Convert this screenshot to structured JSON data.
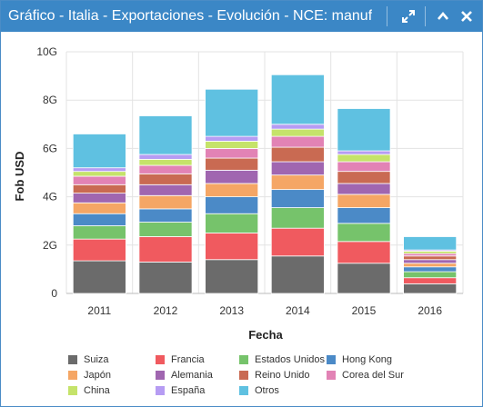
{
  "window": {
    "title": "Gráfico - Italia - Exportaciones - Evolución - NCE: manuf..."
  },
  "icons": {
    "expand": "expand-arrows-icon",
    "collapse": "chevron-up-icon",
    "close": "close-icon"
  },
  "chart_data": {
    "type": "bar",
    "stacked": true,
    "categories": [
      "2011",
      "2012",
      "2013",
      "2014",
      "2015",
      "2016"
    ],
    "xlabel": "Fecha",
    "ylabel": "Fob USD",
    "ylim": [
      0,
      10
    ],
    "yticks": [
      "0",
      "2G",
      "4G",
      "6G",
      "8G",
      "10G"
    ],
    "grid": true,
    "legend_position": "bottom",
    "series": [
      {
        "name": "Suiza",
        "color": "#6b6b6b",
        "values": [
          1.35,
          1.3,
          1.4,
          1.55,
          1.25,
          0.4
        ]
      },
      {
        "name": "Francia",
        "color": "#f05a5f",
        "values": [
          0.9,
          1.05,
          1.1,
          1.15,
          0.9,
          0.25
        ]
      },
      {
        "name": "Estados Unidos",
        "color": "#76c36b",
        "values": [
          0.55,
          0.6,
          0.8,
          0.85,
          0.75,
          0.25
        ]
      },
      {
        "name": "Hong Kong",
        "color": "#4b8ac7",
        "values": [
          0.5,
          0.55,
          0.7,
          0.75,
          0.65,
          0.2
        ]
      },
      {
        "name": "Japón",
        "color": "#f5a665",
        "values": [
          0.45,
          0.55,
          0.55,
          0.6,
          0.55,
          0.15
        ]
      },
      {
        "name": "Alemania",
        "color": "#a066b0",
        "values": [
          0.4,
          0.45,
          0.55,
          0.55,
          0.45,
          0.15
        ]
      },
      {
        "name": "Reino Unido",
        "color": "#c96a52",
        "values": [
          0.35,
          0.45,
          0.5,
          0.6,
          0.5,
          0.15
        ]
      },
      {
        "name": "Corea del Sur",
        "color": "#e283b5",
        "values": [
          0.35,
          0.35,
          0.4,
          0.45,
          0.4,
          0.1
        ]
      },
      {
        "name": "China",
        "color": "#c5e36a",
        "values": [
          0.2,
          0.25,
          0.3,
          0.3,
          0.3,
          0.1
        ]
      },
      {
        "name": "España",
        "color": "#b69cf3",
        "values": [
          0.15,
          0.2,
          0.2,
          0.2,
          0.15,
          0.05
        ]
      },
      {
        "name": "Otros",
        "color": "#5fc1e1",
        "values": [
          1.4,
          1.6,
          1.95,
          2.05,
          1.75,
          0.55
        ]
      }
    ]
  }
}
